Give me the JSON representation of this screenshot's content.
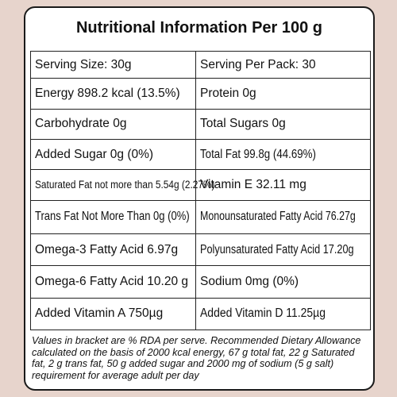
{
  "title": "Nutritional Information Per 100 g",
  "rows": [
    [
      "Serving Size: 30g",
      "Serving Per Pack: 30"
    ],
    [
      "Energy 898.2 kcal (13.5%)",
      "Protein 0g"
    ],
    [
      "Carbohydrate 0g",
      "Total Sugars 0g"
    ],
    [
      "Added Sugar 0g (0%)",
      "Total Fat 99.8g (44.69%)"
    ],
    [
      "Saturated Fat not more than 5.54g (2.27%)",
      "Vitamin E 32.11 mg"
    ],
    [
      "Trans Fat Not More Than 0g (0%)",
      "Monounsaturated Fatty Acid 76.27g"
    ],
    [
      "Omega-3 Fatty Acid 6.97g",
      "Polyunsaturated Fatty Acid 17.20g"
    ],
    [
      "Omega-6 Fatty Acid 10.20 g",
      "Sodium 0mg (0%)"
    ],
    [
      "Added Vitamin A 750µg",
      "Added Vitamin D 11.25µg"
    ]
  ],
  "footnote": "Values in bracket are % RDA per serve. Recommended Dietary Allowance calculated on the basis of 2000 kcal energy, 67 g total fat, 22 g Saturated fat, 2 g trans fat, 50 g added sugar and 2000 mg of sodium (5 g salt) requirement for average adult per day"
}
